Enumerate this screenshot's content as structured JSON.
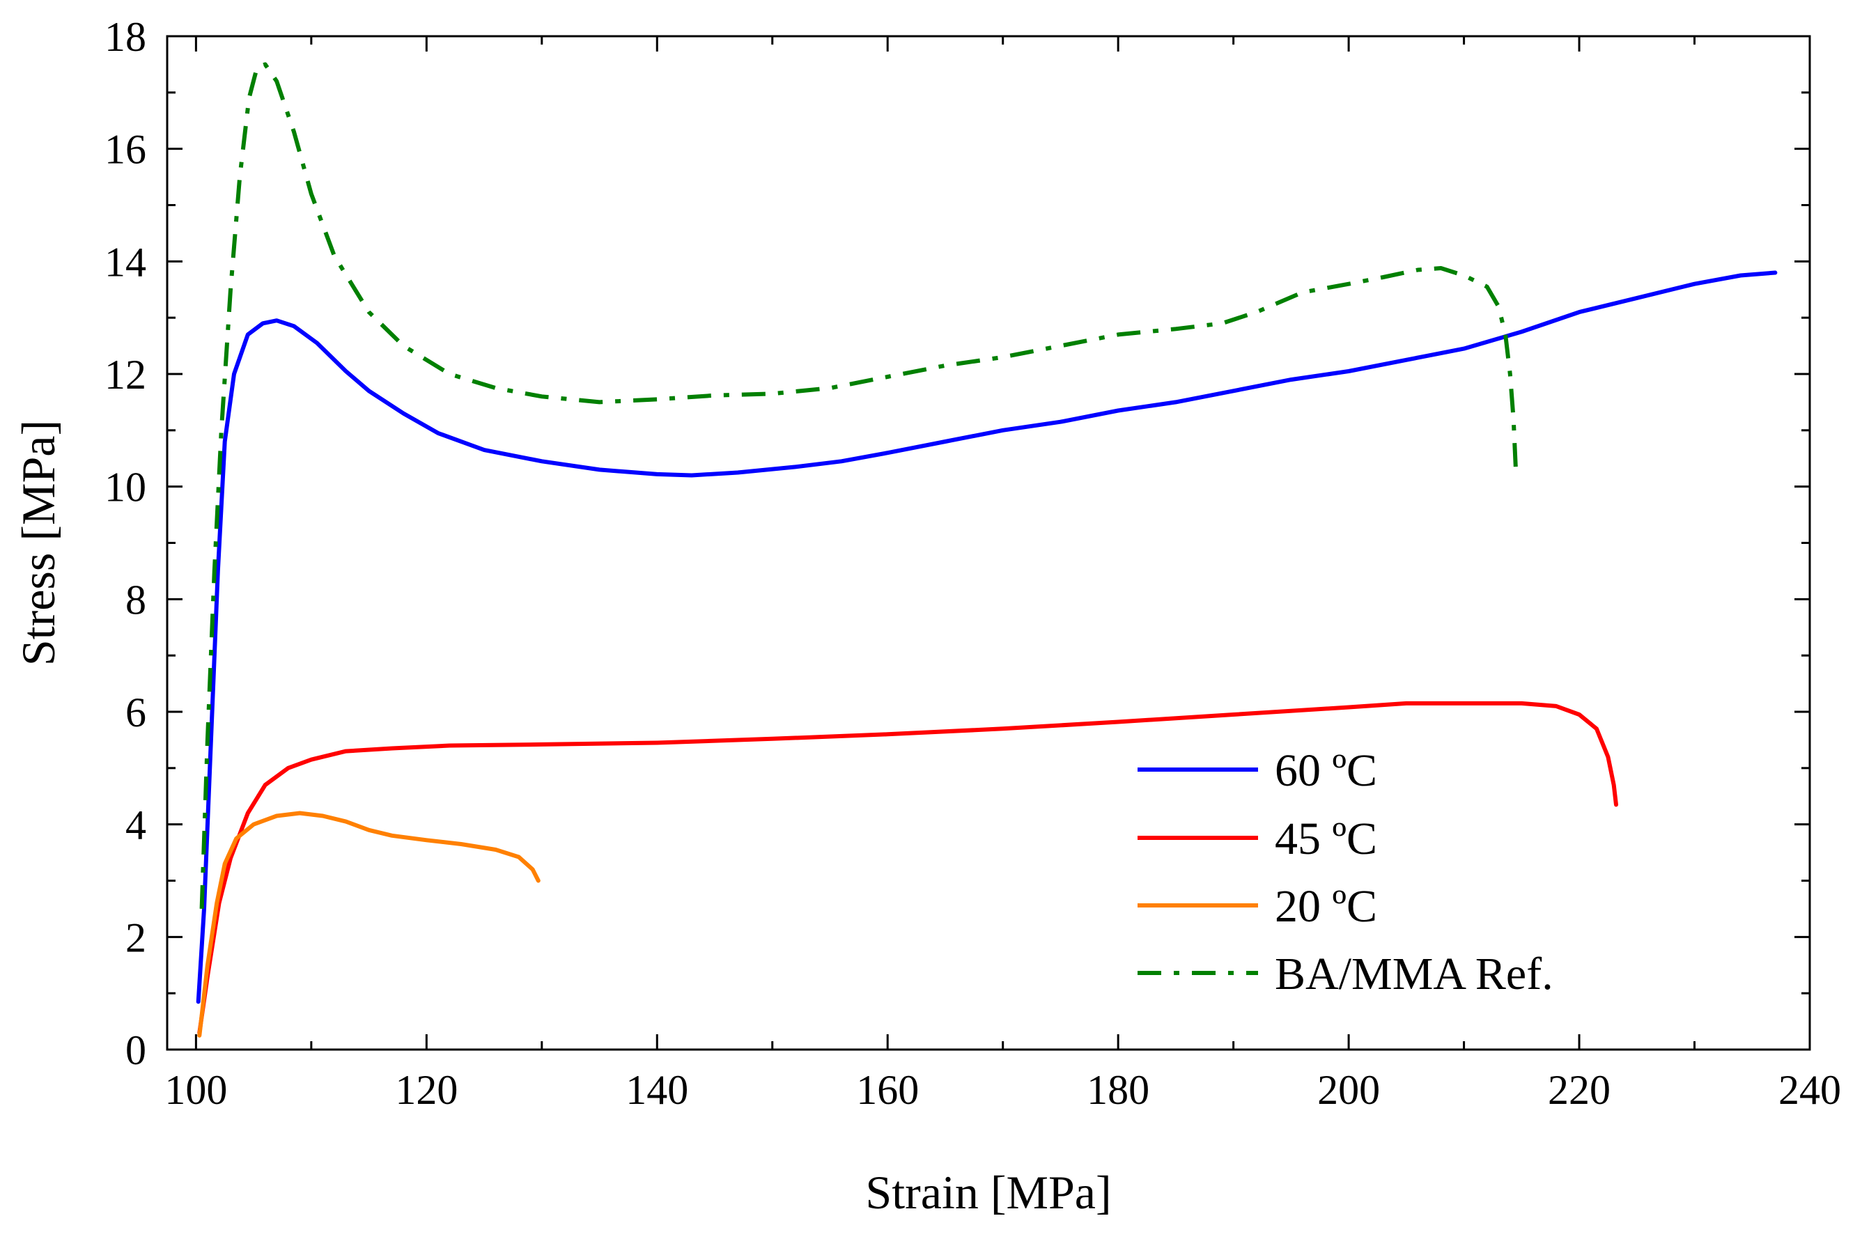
{
  "chart_data": {
    "type": "line",
    "title": "",
    "xlabel": "Strain [MPa]",
    "ylabel": "Stress [MPa]",
    "xlim": [
      97.5,
      240
    ],
    "ylim": [
      0,
      18
    ],
    "xticks": [
      100,
      120,
      140,
      160,
      180,
      200,
      220,
      240
    ],
    "yticks": [
      0,
      2,
      4,
      6,
      8,
      10,
      12,
      14,
      16,
      18
    ],
    "grid": false,
    "legend_position": "bottom-right",
    "series": [
      {
        "name": "60 ºC",
        "color": "#0000ff",
        "style": "solid",
        "points": [
          [
            100.2,
            0.85
          ],
          [
            100.7,
            2.5
          ],
          [
            101.3,
            5.5
          ],
          [
            101.9,
            8.5
          ],
          [
            102.5,
            10.8
          ],
          [
            103.3,
            12.0
          ],
          [
            104.5,
            12.7
          ],
          [
            105.8,
            12.9
          ],
          [
            107,
            12.95
          ],
          [
            108.5,
            12.85
          ],
          [
            110.5,
            12.55
          ],
          [
            113,
            12.05
          ],
          [
            115,
            11.7
          ],
          [
            118,
            11.3
          ],
          [
            121,
            10.95
          ],
          [
            125,
            10.65
          ],
          [
            130,
            10.45
          ],
          [
            135,
            10.3
          ],
          [
            140,
            10.22
          ],
          [
            143,
            10.2
          ],
          [
            147,
            10.25
          ],
          [
            152,
            10.35
          ],
          [
            156,
            10.45
          ],
          [
            160,
            10.6
          ],
          [
            165,
            10.8
          ],
          [
            170,
            11.0
          ],
          [
            175,
            11.15
          ],
          [
            180,
            11.35
          ],
          [
            185,
            11.5
          ],
          [
            190,
            11.7
          ],
          [
            195,
            11.9
          ],
          [
            200,
            12.05
          ],
          [
            205,
            12.25
          ],
          [
            210,
            12.45
          ],
          [
            215,
            12.75
          ],
          [
            220,
            13.1
          ],
          [
            225,
            13.35
          ],
          [
            230,
            13.6
          ],
          [
            234,
            13.75
          ],
          [
            237,
            13.8
          ]
        ]
      },
      {
        "name": "45 ºC",
        "color": "#ff0000",
        "style": "solid",
        "points": [
          [
            100.3,
            0.3
          ],
          [
            101,
            1.3
          ],
          [
            102,
            2.6
          ],
          [
            103,
            3.4
          ],
          [
            104.5,
            4.2
          ],
          [
            106,
            4.7
          ],
          [
            108,
            5.0
          ],
          [
            110,
            5.15
          ],
          [
            113,
            5.3
          ],
          [
            117,
            5.35
          ],
          [
            122,
            5.4
          ],
          [
            130,
            5.42
          ],
          [
            140,
            5.45
          ],
          [
            150,
            5.52
          ],
          [
            160,
            5.6
          ],
          [
            170,
            5.7
          ],
          [
            180,
            5.82
          ],
          [
            190,
            5.95
          ],
          [
            200,
            6.08
          ],
          [
            205,
            6.15
          ],
          [
            210,
            6.15
          ],
          [
            215,
            6.15
          ],
          [
            218,
            6.1
          ],
          [
            220,
            5.95
          ],
          [
            221.5,
            5.7
          ],
          [
            222.5,
            5.2
          ],
          [
            223,
            4.7
          ],
          [
            223.2,
            4.35
          ]
        ]
      },
      {
        "name": "20 ºC",
        "color": "#ff8000",
        "style": "solid",
        "points": [
          [
            100.3,
            0.25
          ],
          [
            101,
            1.5
          ],
          [
            101.8,
            2.6
          ],
          [
            102.5,
            3.3
          ],
          [
            103.5,
            3.75
          ],
          [
            105,
            4.0
          ],
          [
            107,
            4.15
          ],
          [
            109,
            4.2
          ],
          [
            111,
            4.15
          ],
          [
            113,
            4.05
          ],
          [
            115,
            3.9
          ],
          [
            117,
            3.8
          ],
          [
            120,
            3.72
          ],
          [
            123,
            3.65
          ],
          [
            126,
            3.55
          ],
          [
            128,
            3.42
          ],
          [
            129.2,
            3.2
          ],
          [
            129.7,
            3.0
          ]
        ]
      },
      {
        "name": "BA/MMA Ref.",
        "color": "#008000",
        "style": "dashdot",
        "points": [
          [
            100.5,
            2.5
          ],
          [
            101,
            5.5
          ],
          [
            101.6,
            8.5
          ],
          [
            102.2,
            11.0
          ],
          [
            103,
            13.5
          ],
          [
            103.8,
            15.5
          ],
          [
            104.6,
            16.9
          ],
          [
            105.3,
            17.45
          ],
          [
            106,
            17.5
          ],
          [
            107,
            17.2
          ],
          [
            108.5,
            16.3
          ],
          [
            110,
            15.2
          ],
          [
            112,
            14.1
          ],
          [
            115,
            13.1
          ],
          [
            118,
            12.5
          ],
          [
            122,
            12.0
          ],
          [
            126,
            11.75
          ],
          [
            130,
            11.6
          ],
          [
            135,
            11.5
          ],
          [
            140,
            11.55
          ],
          [
            145,
            11.62
          ],
          [
            150,
            11.65
          ],
          [
            155,
            11.75
          ],
          [
            160,
            11.95
          ],
          [
            165,
            12.15
          ],
          [
            170,
            12.3
          ],
          [
            175,
            12.5
          ],
          [
            180,
            12.7
          ],
          [
            185,
            12.8
          ],
          [
            189,
            12.9
          ],
          [
            192,
            13.1
          ],
          [
            196,
            13.45
          ],
          [
            200,
            13.6
          ],
          [
            203,
            13.72
          ],
          [
            206,
            13.85
          ],
          [
            208,
            13.88
          ],
          [
            210,
            13.75
          ],
          [
            212,
            13.55
          ],
          [
            213,
            13.2
          ],
          [
            213.6,
            12.7
          ],
          [
            214,
            12.0
          ],
          [
            214.3,
            11.2
          ],
          [
            214.5,
            10.3
          ]
        ]
      }
    ]
  }
}
